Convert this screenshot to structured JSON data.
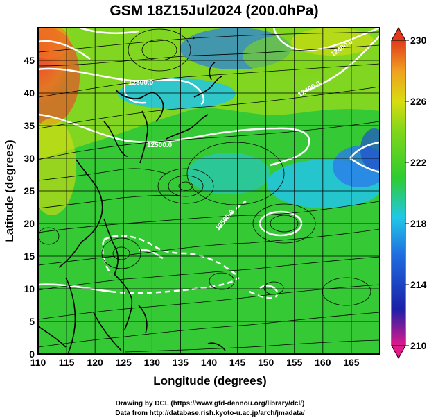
{
  "title": "GSM 18Z15Jul2024 (200.0hPa)",
  "xlabel": "Longitude (degrees)",
  "ylabel": "Latitude  (degrees)",
  "footer": {
    "line1": "Drawing by DCL (https://www.gfd-dennou.org/library/dcl/)",
    "line2": "Data from http://database.rish.kyoto-u.ac.jp/arch/jmadata/"
  },
  "map": {
    "xlim": [
      110,
      170
    ],
    "ylim": [
      0,
      50
    ],
    "xticks": [
      110,
      115,
      120,
      125,
      130,
      135,
      140,
      145,
      150,
      155,
      160,
      165
    ],
    "yticks": [
      0,
      5,
      10,
      15,
      20,
      25,
      30,
      35,
      40,
      45
    ],
    "contour_labels": [
      "12500.0",
      "12500.0",
      "12500.0",
      "12400.0",
      "12400.0"
    ]
  },
  "colorbar": {
    "labels": [
      "230",
      "226",
      "222",
      "218",
      "214",
      "210"
    ],
    "range": [
      210,
      230
    ],
    "colors": [
      "#e01a8a",
      "#1b1fa8",
      "#1f6fe0",
      "#20c8e8",
      "#2ecc30",
      "#7fd61a",
      "#d8dc10",
      "#f0a020",
      "#e03a1a"
    ]
  },
  "colors": {
    "field_green": "#35c935",
    "coast": "#000000",
    "contour": "#ffffff",
    "grid": "#000000"
  }
}
